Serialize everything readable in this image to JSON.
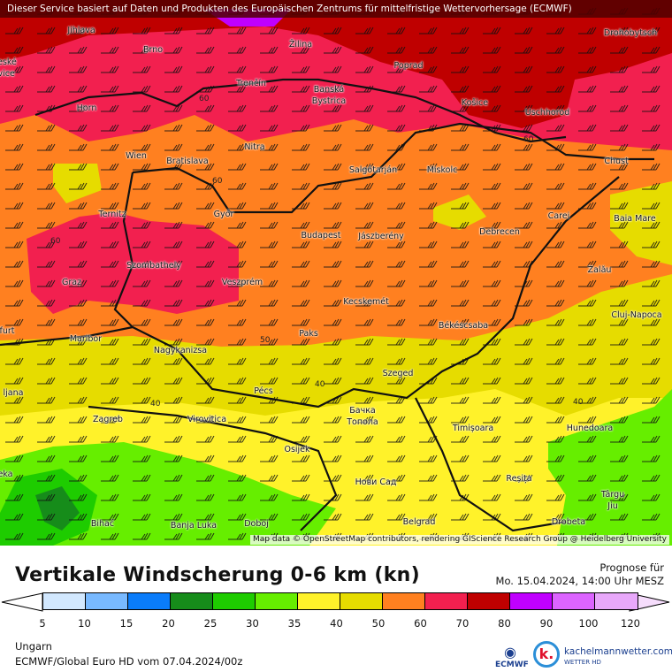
{
  "header": {
    "notice": "Dieser Service basiert auf Daten und Produkten des Europäischen Zentrums für mittelfristige Wettervorhersage (ECMWF)"
  },
  "map": {
    "credit": "Map data © OpenStreetMap contributors, rendering GIScience Research Group @ Heidelberg University",
    "cities": [
      "Jihlava",
      "Brno",
      "Žilina",
      "Poprad",
      "Drohobytsch",
      "eské",
      "ějovice",
      "Trenčín",
      "Banská",
      "Bystrica",
      "Košice",
      "Uschhorod",
      "Horn",
      "Nitra",
      "Wien",
      "Bratislava",
      "Salgótarján",
      "Miskolc",
      "Chust",
      "Ternitz",
      "Győr",
      "Carei",
      "Baia Mare",
      "Budapest",
      "Jászberény",
      "Debrecen",
      "Szombathely",
      "Zalău",
      "Graz",
      "Veszprém",
      "Kecskemét",
      "Cluj-Napoca",
      "furt",
      "Maribor",
      "Paks",
      "Békéscsaba",
      "Nagykanizsa",
      "Szeged",
      "ljana",
      "Pécs",
      "Zagreb",
      "Virovitica",
      "Бачка",
      "Топола",
      "Timișoara",
      "Hunedoara",
      "eka",
      "Osijek",
      "Нови Сад",
      "Reșița",
      "Târgu",
      "Jiu",
      "Bihać",
      "Banja Luka",
      "Doboj",
      "Belgrad",
      "Drobeta"
    ],
    "contour_labels": [
      "60",
      "60",
      "60",
      "60",
      "50",
      "40",
      "40",
      "40"
    ]
  },
  "title": "Vertikale Windscherung 0-6 km (kn)",
  "forecast": {
    "label": "Prognose für",
    "datetime": "Mo. 15.04.2024, 14:00 Uhr MESZ"
  },
  "legend": {
    "ticks": [
      "5",
      "10",
      "15",
      "20",
      "25",
      "30",
      "35",
      "40",
      "50",
      "60",
      "70",
      "80",
      "90",
      "100",
      "120"
    ],
    "colors": [
      "#d2e8fe",
      "#78b9ff",
      "#0a7cfa",
      "#168c1a",
      "#1ecc00",
      "#66ee00",
      "#fff22a",
      "#e6dc00",
      "#ff8020",
      "#f2204f",
      "#bf0000",
      "#c000ff",
      "#dc64ff",
      "#e8a8fa"
    ],
    "below_color": "#ffffff",
    "above_color": "#f6ddfc"
  },
  "footer": {
    "region": "Ungarn",
    "model": "ECMWF/Global Euro HD vom  07.04.2024/00z",
    "ecmwf_logo": "ECMWF",
    "brand": "kachelmannwetter.com",
    "brand_sub": "WETTER HD",
    "brand_mark": "k."
  }
}
